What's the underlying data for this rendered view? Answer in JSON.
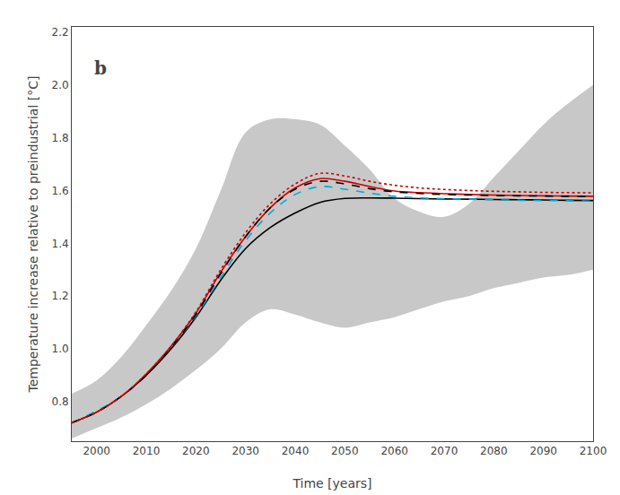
{
  "chart_data": {
    "type": "line",
    "title": "b",
    "xlabel": "Time [years]",
    "ylabel": "Temperature increase relative to preindustrial [°C]",
    "x": [
      1995,
      2000,
      2005,
      2010,
      2015,
      2020,
      2025,
      2030,
      2035,
      2040,
      2045,
      2050,
      2055,
      2060,
      2065,
      2070,
      2075,
      2080,
      2085,
      2090,
      2095,
      2100
    ],
    "xlim": [
      1995,
      2100
    ],
    "ylim": [
      0.65,
      2.22
    ],
    "xticks": [
      2000,
      2010,
      2020,
      2030,
      2040,
      2050,
      2060,
      2070,
      2080,
      2090,
      2100
    ],
    "yticks": [
      0.8,
      {
        "value": 1.0,
        "label": "1.0"
      },
      1.2,
      1.4,
      1.6,
      1.8,
      {
        "value": 2.0,
        "label": "2.0"
      },
      2.2
    ],
    "grid": false,
    "series": [
      {
        "type": "band",
        "color": "#c8c8c8",
        "upper": [
          0.83,
          0.88,
          0.97,
          1.09,
          1.22,
          1.38,
          1.6,
          1.82,
          1.87,
          1.87,
          1.85,
          1.77,
          1.68,
          1.57,
          1.52,
          1.5,
          1.55,
          1.65,
          1.75,
          1.85,
          1.93,
          2.0
        ],
        "lower": [
          0.66,
          0.7,
          0.74,
          0.79,
          0.85,
          0.92,
          1.0,
          1.1,
          1.15,
          1.13,
          1.1,
          1.08,
          1.1,
          1.12,
          1.15,
          1.18,
          1.2,
          1.23,
          1.25,
          1.27,
          1.28,
          1.3
        ]
      },
      {
        "color": "#000000",
        "line_style": "solid",
        "values": [
          0.72,
          0.76,
          0.82,
          0.9,
          1.0,
          1.12,
          1.26,
          1.38,
          1.46,
          1.515,
          1.555,
          1.57,
          1.572,
          1.571,
          1.569,
          1.568,
          1.567,
          1.566,
          1.565,
          1.564,
          1.563,
          1.562
        ]
      },
      {
        "color": "#cc0000",
        "line_style": "solid",
        "values": [
          0.72,
          0.76,
          0.82,
          0.905,
          1.01,
          1.135,
          1.29,
          1.425,
          1.535,
          1.61,
          1.645,
          1.635,
          1.615,
          1.598,
          1.592,
          1.588,
          1.585,
          1.583,
          1.581,
          1.58,
          1.579,
          1.578
        ]
      },
      {
        "color": "#00aadd",
        "line_style": "dashed",
        "values": [
          0.72,
          0.765,
          0.82,
          0.9,
          1.005,
          1.125,
          1.27,
          1.41,
          1.515,
          1.585,
          1.615,
          1.605,
          1.59,
          1.578,
          1.572,
          1.569,
          1.567,
          1.565,
          1.563,
          1.562,
          1.561,
          1.56
        ]
      },
      {
        "color": "#000000",
        "line_style": "dashed",
        "values": [
          0.72,
          0.76,
          0.82,
          0.9,
          1.005,
          1.13,
          1.285,
          1.425,
          1.535,
          1.605,
          1.635,
          1.625,
          1.607,
          1.595,
          1.589,
          1.585,
          1.583,
          1.581,
          1.58,
          1.579,
          1.578,
          1.577
        ]
      },
      {
        "color": "#cc0000",
        "line_style": "dotted",
        "values": [
          0.72,
          0.76,
          0.82,
          0.905,
          1.01,
          1.14,
          1.3,
          1.44,
          1.55,
          1.625,
          1.665,
          1.655,
          1.635,
          1.62,
          1.61,
          1.604,
          1.6,
          1.597,
          1.595,
          1.593,
          1.592,
          1.591
        ]
      }
    ]
  }
}
